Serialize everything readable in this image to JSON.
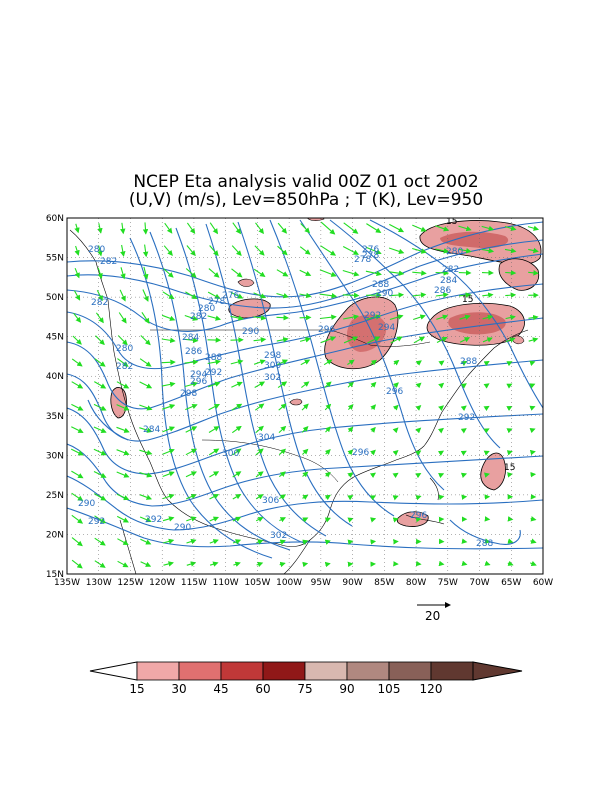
{
  "title": {
    "line1": "NCEP Eta analysis valid 00Z 01 oct 2002",
    "line2": "(U,V) (m/s), Lev=850hPa ; T (K), Lev=950"
  },
  "axes": {
    "lon_labels": [
      "135W",
      "130W",
      "125W",
      "120W",
      "115W",
      "110W",
      "105W",
      "100W",
      "95W",
      "90W",
      "85W",
      "80W",
      "75W",
      "70W",
      "65W",
      "60W"
    ],
    "lat_labels": [
      "60N",
      "55N",
      "50N",
      "45N",
      "40N",
      "35N",
      "30N",
      "25N",
      "20N",
      "15N"
    ]
  },
  "contours": {
    "color": "#2a6fc0",
    "labels": [
      "280",
      "282",
      "282",
      "284",
      "280",
      "282",
      "284",
      "286",
      "288",
      "292",
      "294",
      "296",
      "298",
      "276",
      "278",
      "280",
      "282",
      "290",
      "298",
      "300",
      "302",
      "304",
      "300",
      "306",
      "302",
      "290",
      "292",
      "292",
      "290",
      "276",
      "278",
      "278",
      "280",
      "282",
      "284",
      "286",
      "288",
      "288",
      "290",
      "292",
      "294",
      "296",
      "296",
      "292",
      "296",
      "296",
      "288",
      "15",
      "15",
      "15"
    ]
  },
  "wind_vectors": {
    "color": "#22dd22",
    "reference_value": "20"
  },
  "shading": {
    "colors": [
      "#f0a8a8",
      "#e07070",
      "#c03838",
      "#901818",
      "#d8b8b0",
      "#b08880",
      "#886058",
      "#603830"
    ],
    "colorbar_ticks": [
      "15",
      "30",
      "45",
      "60",
      "75",
      "90",
      "105",
      "120"
    ]
  }
}
